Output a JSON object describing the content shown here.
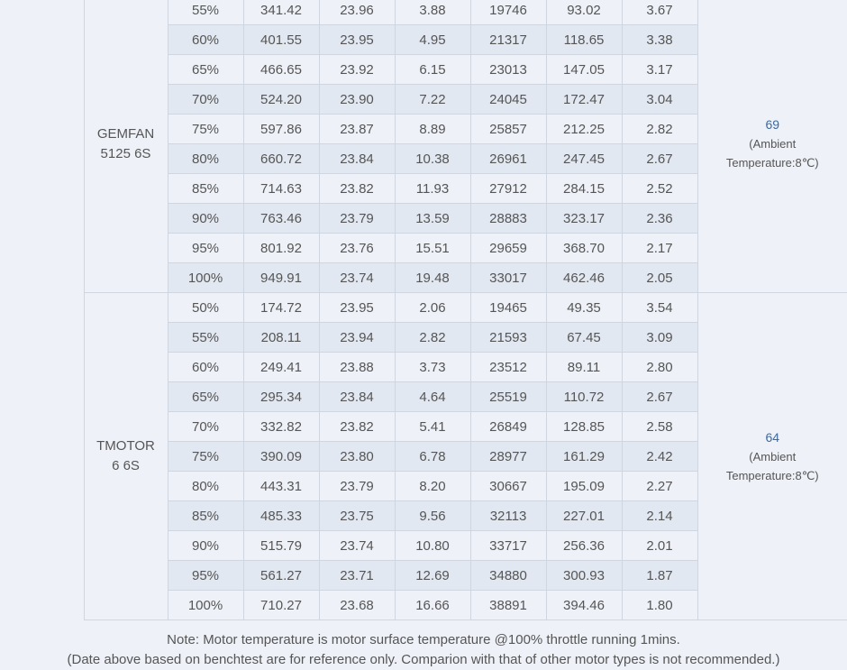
{
  "groups": [
    {
      "prop": [
        "GEMFAN",
        "5125 6S"
      ],
      "temp": "69",
      "temp_note": [
        "(Ambient",
        "Temperature:8℃)"
      ],
      "rows": [
        [
          "55%",
          "341.42",
          "23.96",
          "3.88",
          "19746",
          "93.02",
          "3.67"
        ],
        [
          "60%",
          "401.55",
          "23.95",
          "4.95",
          "21317",
          "118.65",
          "3.38"
        ],
        [
          "65%",
          "466.65",
          "23.92",
          "6.15",
          "23013",
          "147.05",
          "3.17"
        ],
        [
          "70%",
          "524.20",
          "23.90",
          "7.22",
          "24045",
          "172.47",
          "3.04"
        ],
        [
          "75%",
          "597.86",
          "23.87",
          "8.89",
          "25857",
          "212.25",
          "2.82"
        ],
        [
          "80%",
          "660.72",
          "23.84",
          "10.38",
          "26961",
          "247.45",
          "2.67"
        ],
        [
          "85%",
          "714.63",
          "23.82",
          "11.93",
          "27912",
          "284.15",
          "2.52"
        ],
        [
          "90%",
          "763.46",
          "23.79",
          "13.59",
          "28883",
          "323.17",
          "2.36"
        ],
        [
          "95%",
          "801.92",
          "23.76",
          "15.51",
          "29659",
          "368.70",
          "2.17"
        ],
        [
          "100%",
          "949.91",
          "23.74",
          "19.48",
          "33017",
          "462.46",
          "2.05"
        ]
      ]
    },
    {
      "prop": [
        "TMOTOR",
        "6 6S"
      ],
      "temp": "64",
      "temp_note": [
        "(Ambient",
        "Temperature:8℃)"
      ],
      "rows": [
        [
          "50%",
          "174.72",
          "23.95",
          "2.06",
          "19465",
          "49.35",
          "3.54"
        ],
        [
          "55%",
          "208.11",
          "23.94",
          "2.82",
          "21593",
          "67.45",
          "3.09"
        ],
        [
          "60%",
          "249.41",
          "23.88",
          "3.73",
          "23512",
          "89.11",
          "2.80"
        ],
        [
          "65%",
          "295.34",
          "23.84",
          "4.64",
          "25519",
          "110.72",
          "2.67"
        ],
        [
          "70%",
          "332.82",
          "23.82",
          "5.41",
          "26849",
          "128.85",
          "2.58"
        ],
        [
          "75%",
          "390.09",
          "23.80",
          "6.78",
          "28977",
          "161.29",
          "2.42"
        ],
        [
          "80%",
          "443.31",
          "23.79",
          "8.20",
          "30667",
          "195.09",
          "2.27"
        ],
        [
          "85%",
          "485.33",
          "23.75",
          "9.56",
          "32113",
          "227.01",
          "2.14"
        ],
        [
          "90%",
          "515.79",
          "23.74",
          "10.80",
          "33717",
          "256.36",
          "2.01"
        ],
        [
          "95%",
          "561.27",
          "23.71",
          "12.69",
          "34880",
          "300.93",
          "1.87"
        ],
        [
          "100%",
          "710.27",
          "23.68",
          "16.66",
          "38891",
          "394.46",
          "1.80"
        ]
      ]
    }
  ],
  "note": {
    "line1": "Note: Motor temperature is motor surface temperature @100% throttle running 1mins.",
    "line2": "(Date above based on benchtest are for reference only. Comparion with that of other motor types is not recommended.)"
  }
}
